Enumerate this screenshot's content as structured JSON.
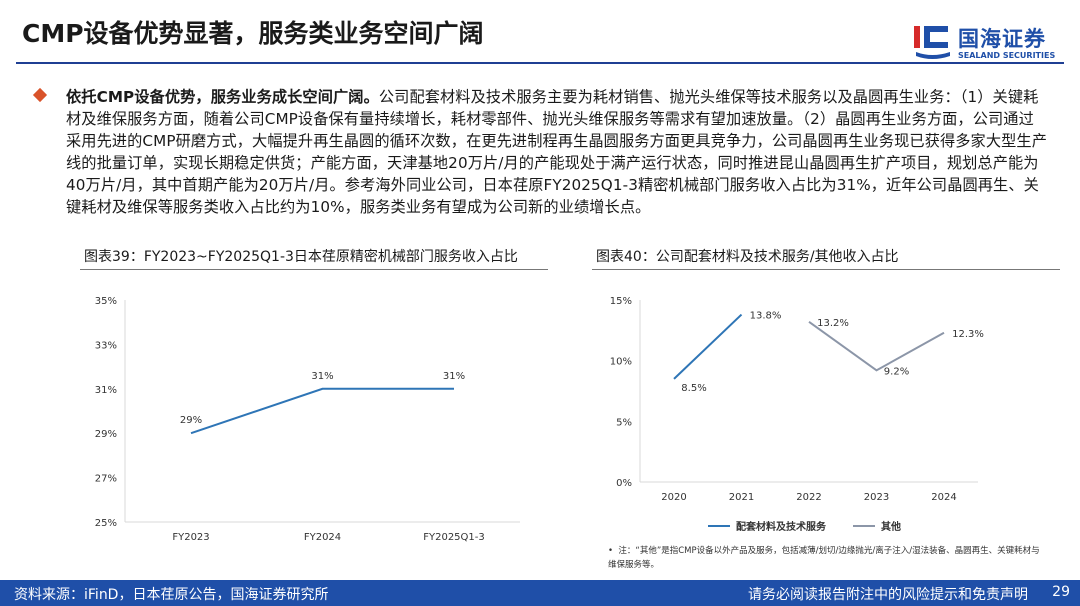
{
  "header": {
    "title": "CMP设备优势显著，服务类业务空间广阔",
    "logo_cn": "国海证券",
    "logo_en": "SEALAND SECURITIES"
  },
  "body": {
    "lead": "依托CMP设备优势，服务业务成长空间广阔。",
    "text": "公司配套材料及技术服务主要为耗材销售、抛光头维保等技术服务以及晶圆再生业务：（1）关键耗材及维保服务方面，随着公司CMP设备保有量持续增长，耗材零部件、抛光头维保服务等需求有望加速放量。（2）晶圆再生业务方面，公司通过采用先进的CMP研磨方式，大幅提升再生晶圆的循环次数，在更先进制程再生晶圆服务方面更具竞争力，公司晶圆再生业务现已获得多家大型生产线的批量订单，实现长期稳定供货；产能方面，天津基地20万片/月的产能现处于满产运行状态，同时推进昆山晶圆再生扩产项目，规划总产能为40万片/月，其中首期产能为20万片/月。参考海外同业公司，日本荏原FY2025Q1-3精密机械部门服务收入占比为31%，近年公司晶圆再生、关键耗材及维保等服务类收入占比约为10%，服务类业务有望成为公司新的业绩增长点。"
  },
  "figures": {
    "fig39_title": "图表39：FY2023~FY2025Q1-3日本荏原精密机械部门服务收入占比",
    "fig40_title": "图表40：公司配套材料及技术服务/其他收入占比"
  },
  "chart_data": [
    {
      "type": "line",
      "title": "图表39：FY2023~FY2025Q1-3日本荏原精密机械部门服务收入占比",
      "categories": [
        "FY2023",
        "FY2024",
        "FY2025Q1-3"
      ],
      "series": [
        {
          "values": [
            29,
            31,
            31
          ],
          "labels": [
            "29%",
            "31%",
            "31%"
          ],
          "color": "#2e75b6"
        }
      ],
      "y_ticks": [
        "25%",
        "27%",
        "29%",
        "31%",
        "33%",
        "35%"
      ],
      "ylim": [
        25,
        35
      ],
      "grid": false
    },
    {
      "type": "line",
      "title": "图表40：公司配套材料及技术服务/其他收入占比",
      "categories": [
        "2020",
        "2021",
        "2022",
        "2023",
        "2024"
      ],
      "series": [
        {
          "name": "配套材料及技术服务",
          "values": [
            8.5,
            13.8,
            null,
            null,
            null
          ],
          "labels": [
            "8.5%",
            "13.8%",
            "",
            "",
            ""
          ],
          "color": "#2e75b6"
        },
        {
          "name": "其他",
          "values": [
            null,
            null,
            13.2,
            9.2,
            12.3
          ],
          "labels": [
            "",
            "",
            "13.2%",
            "9.2%",
            "12.3%"
          ],
          "color": "#8c96a8"
        }
      ],
      "y_ticks": [
        "0%",
        "5%",
        "10%",
        "15%"
      ],
      "ylim": [
        0,
        15
      ],
      "grid": false,
      "legend_position": "bottom"
    }
  ],
  "note": "注：“其他”是指CMP设备以外产品及服务，包括减薄/划切/边缘抛光/离子注入/湿法装备、晶圆再生、关键耗材与维保服务等。",
  "note_bullet": "•",
  "footer": {
    "source": "资料来源：iFinD，日本荏原公告，国海证券研究所",
    "disclaimer": "请务必阅读报告附注中的风险提示和免责声明",
    "page": "29"
  }
}
